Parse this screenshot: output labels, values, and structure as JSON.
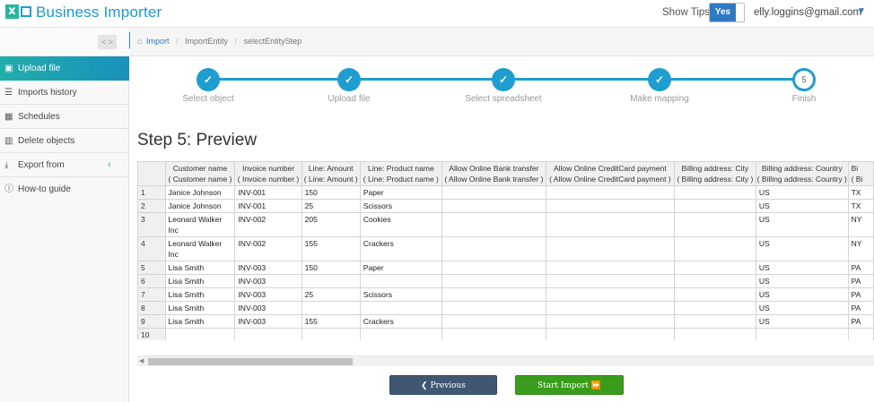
{
  "app": {
    "name": "Business Importer"
  },
  "header": {
    "tips_label": "Show Tips",
    "tips_toggle": "Yes",
    "user_email": "elly.loggins@gmail.com"
  },
  "sidebar": {
    "items": [
      {
        "label": "Upload file",
        "icon": "upload-file-icon"
      },
      {
        "label": "Imports history",
        "icon": "list-icon"
      },
      {
        "label": "Schedules",
        "icon": "calendar-icon"
      },
      {
        "label": "Delete objects",
        "icon": "trash-icon"
      },
      {
        "label": "Export from",
        "icon": "download-icon"
      },
      {
        "label": "How-to guide",
        "icon": "info-icon"
      }
    ]
  },
  "breadcrumb": {
    "items": [
      "Import",
      "ImportEntity",
      "selectEntityStep"
    ]
  },
  "stepper": {
    "steps": [
      {
        "label": "Select object",
        "state": "done"
      },
      {
        "label": "Upload file",
        "state": "done"
      },
      {
        "label": "Select spreadsheet",
        "state": "done"
      },
      {
        "label": "Make mapping",
        "state": "done"
      },
      {
        "label": "Finish",
        "state": "current",
        "number": "5"
      }
    ]
  },
  "page": {
    "title": "Step 5: Preview"
  },
  "table": {
    "columns": [
      {
        "name": "Customer name",
        "sub": "( Customer name )"
      },
      {
        "name": "Invoice number",
        "sub": "( Invoice number )"
      },
      {
        "name": "Line: Amount",
        "sub": "( Line: Amount )"
      },
      {
        "name": "Line: Product name",
        "sub": "( Line: Product name )"
      },
      {
        "name": "Allow Online Bank transfer",
        "sub": "( Allow Online Bank transfer )"
      },
      {
        "name": "Allow Online CreditCard payment",
        "sub": "( Allow Online CreditCard payment )"
      },
      {
        "name": "Billing address: City",
        "sub": "( Billing address: City )"
      },
      {
        "name": "Billing address: Country",
        "sub": "( Billing address: Country )"
      },
      {
        "name": "Bi",
        "sub": "( Bi"
      }
    ],
    "rows": [
      {
        "n": "1",
        "cells": [
          "Janice Johnson",
          "INV-001",
          "150",
          "Paper",
          "",
          "",
          "",
          "US",
          "TX"
        ]
      },
      {
        "n": "2",
        "cells": [
          "Janice Johnson",
          "INV-001",
          "25",
          "Scissors",
          "",
          "",
          "",
          "US",
          "TX"
        ]
      },
      {
        "n": "3",
        "cells": [
          "Leonard Walker Inc",
          "INV-002",
          "205",
          "Cookies",
          "",
          "",
          "",
          "US",
          "NY"
        ]
      },
      {
        "n": "4",
        "cells": [
          "Leonard Walker Inc",
          "INV-002",
          "155",
          "Crackers",
          "",
          "",
          "",
          "US",
          "NY"
        ]
      },
      {
        "n": "5",
        "cells": [
          "Lisa Smith",
          "INV-003",
          "150",
          "Paper",
          "",
          "",
          "",
          "US",
          "PA"
        ]
      },
      {
        "n": "6",
        "cells": [
          "Lisa Smith",
          "INV-003",
          "",
          "",
          "",
          "",
          "",
          "US",
          "PA"
        ]
      },
      {
        "n": "7",
        "cells": [
          "Lisa Smith",
          "INV-003",
          "25",
          "Scissors",
          "",
          "",
          "",
          "US",
          "PA"
        ]
      },
      {
        "n": "8",
        "cells": [
          "Lisa Smith",
          "INV-003",
          "",
          "",
          "",
          "",
          "",
          "US",
          "PA"
        ]
      },
      {
        "n": "9",
        "cells": [
          "Lisa Smith",
          "INV-003",
          "155",
          "Crackers",
          "",
          "",
          "",
          "US",
          "PA"
        ]
      },
      {
        "n": "10",
        "cells": [
          "",
          "",
          "",
          "",
          "",
          "",
          "",
          "",
          ""
        ]
      }
    ]
  },
  "buttons": {
    "previous": "Previous",
    "start_import": "Start Import"
  },
  "colors": {
    "accent": "#1e9dd0",
    "start_button": "#3a9c1b",
    "previous_button": "#3f5771"
  }
}
